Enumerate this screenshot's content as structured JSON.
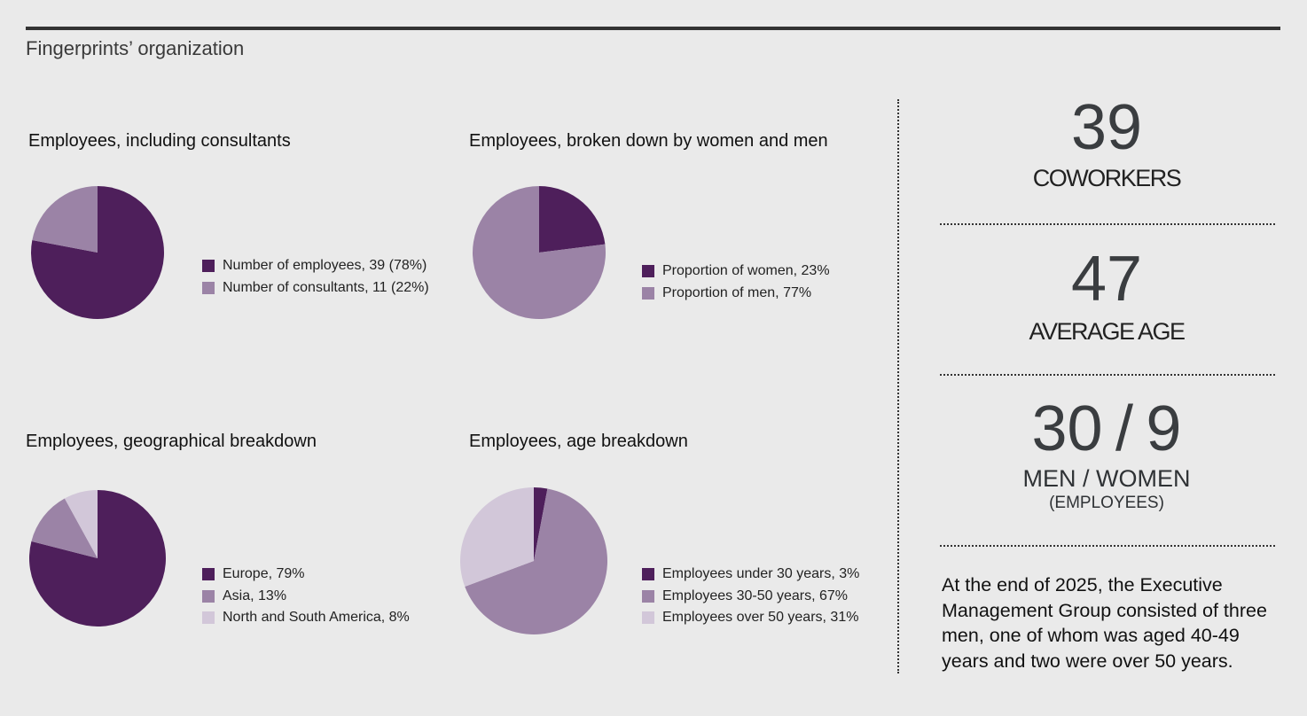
{
  "page": {
    "title": "Fingerprints’ organization"
  },
  "chart_data": [
    {
      "type": "pie",
      "title": "Employees, including consultants",
      "labels": [
        "Number of employees, 39 (78%)",
        "Number of consultants, 11 (22%)"
      ],
      "values": [
        78,
        22
      ],
      "colors": [
        "#4e1f5b",
        "#9b83a6"
      ]
    },
    {
      "type": "pie",
      "title": "Employees, broken down by women and men",
      "labels": [
        "Proportion of women, 23%",
        "Proportion of men, 77%"
      ],
      "values": [
        23,
        77
      ],
      "colors": [
        "#4e1f5b",
        "#9b83a6"
      ]
    },
    {
      "type": "pie",
      "title": "Employees, geographical breakdown",
      "labels": [
        "Europe, 79%",
        "Asia, 13%",
        "North and South America, 8%"
      ],
      "values": [
        79,
        13,
        8
      ],
      "colors": [
        "#4e1f5b",
        "#9b83a6",
        "#d2c7d9"
      ]
    },
    {
      "type": "pie",
      "title": "Employees, age breakdown",
      "labels": [
        "Employees under 30 years, 3%",
        "Employees 30-50 years, 67%",
        "Employees over 50 years, 31%"
      ],
      "values": [
        3,
        67,
        31
      ],
      "colors": [
        "#4e1f5b",
        "#9b83a6",
        "#d2c7d9"
      ]
    }
  ],
  "stats": {
    "coworkers": {
      "value": "39",
      "label": "COWORKERS"
    },
    "average_age": {
      "value": "47",
      "label": "AVERAGE AGE"
    },
    "men_women": {
      "value": "30 / 9",
      "label": "MEN / WOMEN",
      "sublabel": "(EMPLOYEES)"
    },
    "note": "At the end of 2025, the Executive Management Group consisted of three men, one of whom was aged 40-49 years and two were over 50 years."
  }
}
